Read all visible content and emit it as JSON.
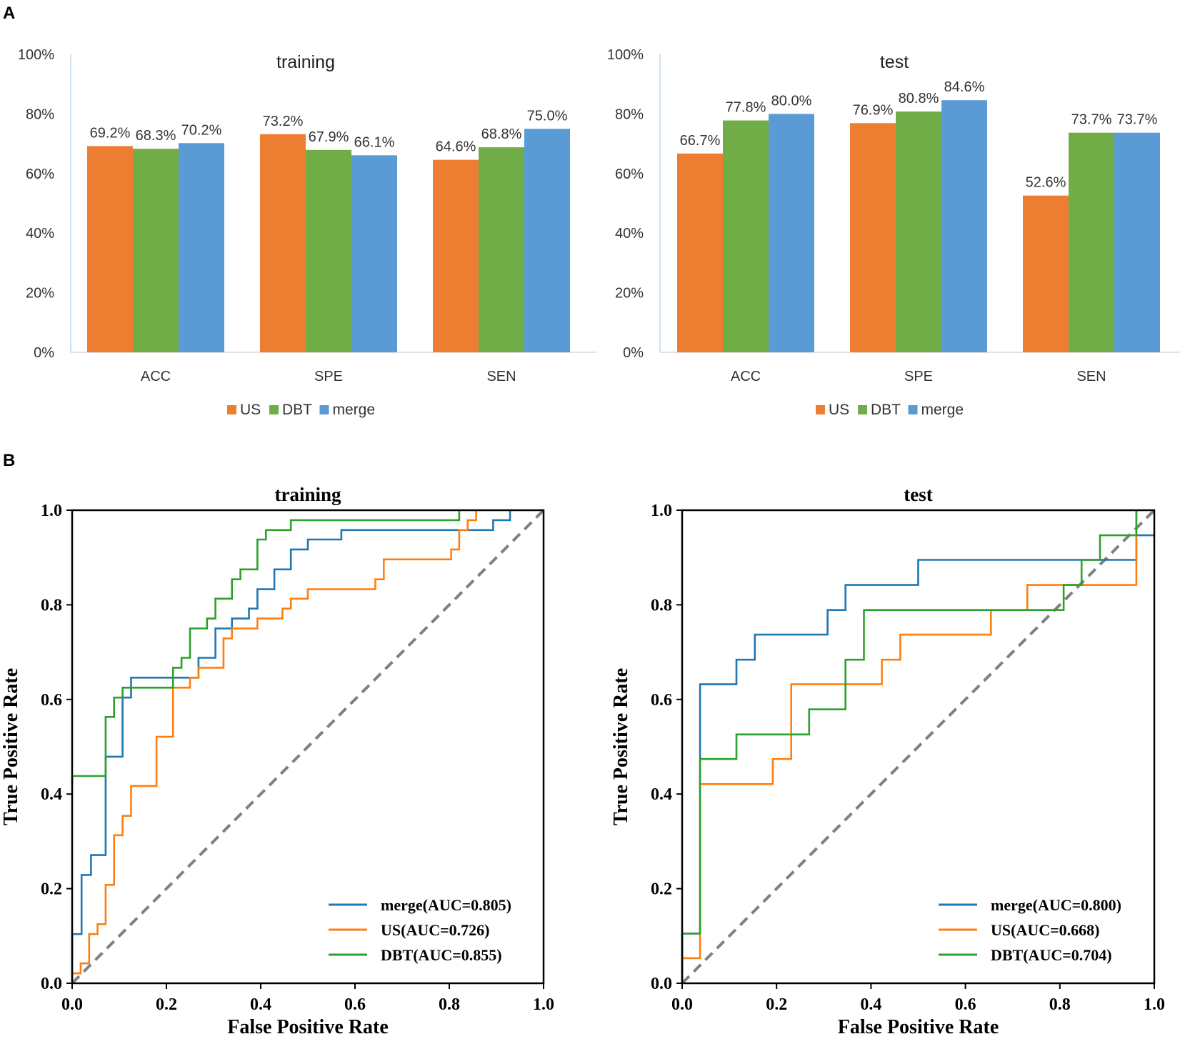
{
  "panels": {
    "a": "A",
    "b": "B"
  },
  "colors": {
    "US": "#ED7D31",
    "DBT": "#70AD47",
    "merge": "#5B9BD5",
    "roc_merge": "#1F77B4",
    "roc_us": "#FF7F0E",
    "roc_dbt": "#2CA02C",
    "diagonal": "#808080"
  },
  "chart_data": [
    {
      "type": "bar",
      "title": "training",
      "categories": [
        "ACC",
        "SPE",
        "SEN"
      ],
      "ylim": [
        0,
        100
      ],
      "yticks": [
        "0%",
        "20%",
        "40%",
        "60%",
        "80%",
        "100%"
      ],
      "series": [
        {
          "name": "US",
          "values": [
            69.2,
            73.2,
            64.6
          ],
          "labels": [
            "69.2%",
            "73.2%",
            "64.6%"
          ]
        },
        {
          "name": "DBT",
          "values": [
            68.3,
            67.9,
            68.8
          ],
          "labels": [
            "68.3%",
            "67.9%",
            "68.8%"
          ]
        },
        {
          "name": "merge",
          "values": [
            70.2,
            66.1,
            75.0
          ],
          "labels": [
            "70.2%",
            "66.1%",
            "75.0%"
          ]
        }
      ]
    },
    {
      "type": "bar",
      "title": "test",
      "categories": [
        "ACC",
        "SPE",
        "SEN"
      ],
      "ylim": [
        0,
        100
      ],
      "yticks": [
        "0%",
        "20%",
        "40%",
        "60%",
        "80%",
        "100%"
      ],
      "series": [
        {
          "name": "US",
          "values": [
            66.7,
            76.9,
            52.6
          ],
          "labels": [
            "66.7%",
            "76.9%",
            "52.6%"
          ]
        },
        {
          "name": "DBT",
          "values": [
            77.8,
            80.8,
            73.7
          ],
          "labels": [
            "77.8%",
            "80.8%",
            "73.7%"
          ]
        },
        {
          "name": "merge",
          "values": [
            80.0,
            84.6,
            73.7
          ],
          "labels": [
            "80.0%",
            "84.6%",
            "73.7%"
          ]
        }
      ]
    },
    {
      "type": "line",
      "title": "training",
      "xlabel": "False Positive Rate",
      "ylabel": "True Positive Rate",
      "xlim": [
        0,
        1
      ],
      "ylim": [
        0,
        1
      ],
      "ticks": [
        "0.0",
        "0.2",
        "0.4",
        "0.6",
        "0.8",
        "1.0"
      ],
      "series": [
        {
          "name": "merge(AUC=0.805)",
          "key": "roc_merge",
          "points": [
            [
              0,
              0
            ],
            [
              0,
              0.104
            ],
            [
              0.02,
              0.104
            ],
            [
              0.02,
              0.229
            ],
            [
              0.04,
              0.229
            ],
            [
              0.04,
              0.271
            ],
            [
              0.071,
              0.271
            ],
            [
              0.071,
              0.479
            ],
            [
              0.107,
              0.479
            ],
            [
              0.107,
              0.604
            ],
            [
              0.125,
              0.604
            ],
            [
              0.125,
              0.646
            ],
            [
              0.268,
              0.646
            ],
            [
              0.268,
              0.688
            ],
            [
              0.304,
              0.688
            ],
            [
              0.304,
              0.75
            ],
            [
              0.339,
              0.75
            ],
            [
              0.339,
              0.771
            ],
            [
              0.375,
              0.771
            ],
            [
              0.375,
              0.792
            ],
            [
              0.393,
              0.792
            ],
            [
              0.393,
              0.833
            ],
            [
              0.429,
              0.833
            ],
            [
              0.429,
              0.875
            ],
            [
              0.464,
              0.875
            ],
            [
              0.464,
              0.917
            ],
            [
              0.5,
              0.917
            ],
            [
              0.5,
              0.938
            ],
            [
              0.571,
              0.938
            ],
            [
              0.571,
              0.958
            ],
            [
              0.893,
              0.958
            ],
            [
              0.893,
              0.979
            ],
            [
              0.929,
              0.979
            ],
            [
              0.929,
              1.0
            ]
          ]
        },
        {
          "name": "US(AUC=0.726)",
          "key": "roc_us",
          "points": [
            [
              0,
              0
            ],
            [
              0,
              0.021
            ],
            [
              0.018,
              0.021
            ],
            [
              0.018,
              0.042
            ],
            [
              0.036,
              0.042
            ],
            [
              0.036,
              0.104
            ],
            [
              0.054,
              0.104
            ],
            [
              0.054,
              0.125
            ],
            [
              0.071,
              0.125
            ],
            [
              0.071,
              0.208
            ],
            [
              0.089,
              0.208
            ],
            [
              0.089,
              0.313
            ],
            [
              0.107,
              0.313
            ],
            [
              0.107,
              0.354
            ],
            [
              0.125,
              0.354
            ],
            [
              0.125,
              0.417
            ],
            [
              0.179,
              0.417
            ],
            [
              0.179,
              0.521
            ],
            [
              0.214,
              0.521
            ],
            [
              0.214,
              0.625
            ],
            [
              0.25,
              0.625
            ],
            [
              0.25,
              0.646
            ],
            [
              0.268,
              0.646
            ],
            [
              0.268,
              0.667
            ],
            [
              0.321,
              0.667
            ],
            [
              0.321,
              0.729
            ],
            [
              0.339,
              0.729
            ],
            [
              0.339,
              0.75
            ],
            [
              0.393,
              0.75
            ],
            [
              0.393,
              0.771
            ],
            [
              0.446,
              0.771
            ],
            [
              0.446,
              0.792
            ],
            [
              0.464,
              0.792
            ],
            [
              0.464,
              0.813
            ],
            [
              0.5,
              0.813
            ],
            [
              0.5,
              0.833
            ],
            [
              0.643,
              0.833
            ],
            [
              0.643,
              0.854
            ],
            [
              0.661,
              0.854
            ],
            [
              0.661,
              0.896
            ],
            [
              0.804,
              0.896
            ],
            [
              0.804,
              0.917
            ],
            [
              0.821,
              0.917
            ],
            [
              0.821,
              0.958
            ],
            [
              0.839,
              0.958
            ],
            [
              0.839,
              0.979
            ],
            [
              0.857,
              0.979
            ],
            [
              0.857,
              1.0
            ]
          ]
        },
        {
          "name": "DBT(AUC=0.855)",
          "key": "roc_dbt",
          "points": [
            [
              0,
              0.417
            ],
            [
              0,
              0.438
            ],
            [
              0.018,
              0.438
            ],
            [
              0.018,
              0.438
            ],
            [
              0.071,
              0.438
            ],
            [
              0.071,
              0.563
            ],
            [
              0.089,
              0.563
            ],
            [
              0.089,
              0.604
            ],
            [
              0.107,
              0.604
            ],
            [
              0.107,
              0.625
            ],
            [
              0.214,
              0.625
            ],
            [
              0.214,
              0.667
            ],
            [
              0.232,
              0.667
            ],
            [
              0.232,
              0.688
            ],
            [
              0.25,
              0.688
            ],
            [
              0.25,
              0.75
            ],
            [
              0.286,
              0.75
            ],
            [
              0.286,
              0.771
            ],
            [
              0.304,
              0.771
            ],
            [
              0.304,
              0.813
            ],
            [
              0.339,
              0.813
            ],
            [
              0.339,
              0.854
            ],
            [
              0.357,
              0.854
            ],
            [
              0.357,
              0.875
            ],
            [
              0.393,
              0.875
            ],
            [
              0.393,
              0.917
            ],
            [
              0.393,
              0.938
            ],
            [
              0.411,
              0.938
            ],
            [
              0.411,
              0.958
            ],
            [
              0.464,
              0.958
            ],
            [
              0.464,
              0.979
            ],
            [
              0.821,
              0.979
            ],
            [
              0.821,
              1.0
            ]
          ]
        }
      ]
    },
    {
      "type": "line",
      "title": "test",
      "xlabel": "False Positive Rate",
      "ylabel": "True Positive Rate",
      "xlim": [
        0,
        1
      ],
      "ylim": [
        0,
        1
      ],
      "ticks": [
        "0.0",
        "0.2",
        "0.4",
        "0.6",
        "0.8",
        "1.0"
      ],
      "series": [
        {
          "name": "merge(AUC=0.800)",
          "key": "roc_merge",
          "points": [
            [
              0,
              0
            ],
            [
              0,
              0.105
            ],
            [
              0.038,
              0.105
            ],
            [
              0.038,
              0.632
            ],
            [
              0.115,
              0.632
            ],
            [
              0.115,
              0.684
            ],
            [
              0.154,
              0.684
            ],
            [
              0.154,
              0.737
            ],
            [
              0.308,
              0.737
            ],
            [
              0.308,
              0.789
            ],
            [
              0.346,
              0.789
            ],
            [
              0.346,
              0.842
            ],
            [
              0.5,
              0.842
            ],
            [
              0.5,
              0.895
            ],
            [
              0.962,
              0.895
            ],
            [
              0.962,
              0.947
            ],
            [
              1.0,
              0.947
            ]
          ]
        },
        {
          "name": "US(AUC=0.668)",
          "key": "roc_us",
          "points": [
            [
              0,
              0
            ],
            [
              0,
              0.053
            ],
            [
              0.038,
              0.053
            ],
            [
              0.038,
              0.421
            ],
            [
              0.192,
              0.421
            ],
            [
              0.192,
              0.474
            ],
            [
              0.231,
              0.474
            ],
            [
              0.231,
              0.632
            ],
            [
              0.423,
              0.632
            ],
            [
              0.423,
              0.684
            ],
            [
              0.462,
              0.684
            ],
            [
              0.462,
              0.737
            ],
            [
              0.654,
              0.737
            ],
            [
              0.654,
              0.789
            ],
            [
              0.731,
              0.789
            ],
            [
              0.731,
              0.842
            ],
            [
              0.962,
              0.842
            ],
            [
              0.962,
              1.0
            ]
          ]
        },
        {
          "name": "DBT(AUC=0.704)",
          "key": "roc_dbt",
          "points": [
            [
              0,
              0
            ],
            [
              0,
              0.105
            ],
            [
              0.038,
              0.105
            ],
            [
              0.038,
              0.474
            ],
            [
              0.115,
              0.474
            ],
            [
              0.115,
              0.526
            ],
            [
              0.269,
              0.526
            ],
            [
              0.269,
              0.579
            ],
            [
              0.346,
              0.579
            ],
            [
              0.346,
              0.684
            ],
            [
              0.385,
              0.684
            ],
            [
              0.385,
              0.789
            ],
            [
              0.808,
              0.789
            ],
            [
              0.808,
              0.842
            ],
            [
              0.846,
              0.842
            ],
            [
              0.846,
              0.895
            ],
            [
              0.885,
              0.895
            ],
            [
              0.885,
              0.947
            ],
            [
              0.962,
              0.947
            ],
            [
              0.962,
              1.0
            ]
          ]
        }
      ]
    }
  ]
}
